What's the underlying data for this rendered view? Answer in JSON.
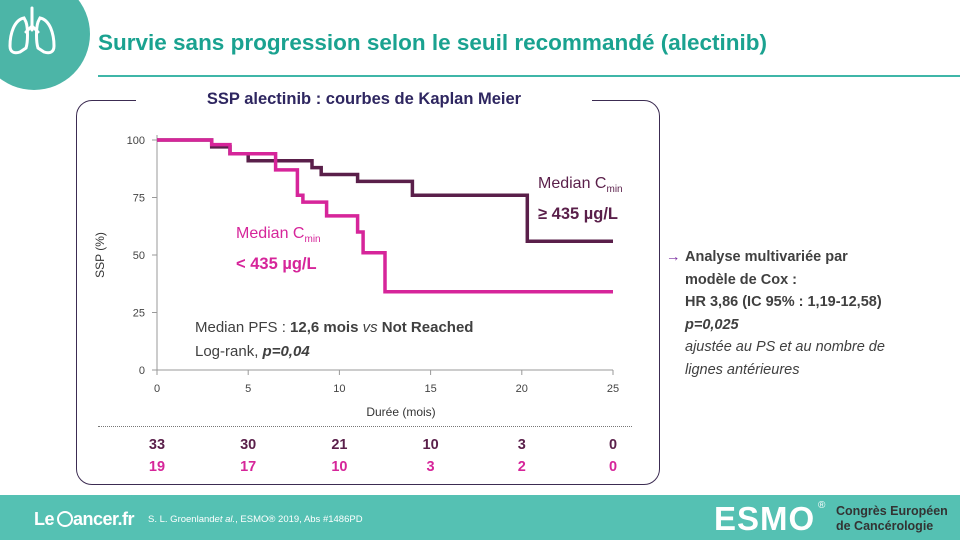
{
  "title": "Survie sans progression selon le seuil recommandé (alectinib)",
  "panel_title": "SSP alectinib : courbes de Kaplan Meier",
  "chart_data": {
    "type": "line",
    "subtype": "kaplan-meier-step",
    "xlabel": "Durée (mois)",
    "ylabel": "SSP (%)",
    "xlim": [
      0,
      25
    ],
    "ylim": [
      0,
      100
    ],
    "xticks": [
      0,
      5,
      10,
      15,
      20,
      25
    ],
    "yticks": [
      0,
      25,
      50,
      75,
      100
    ],
    "grid": false,
    "colors": {
      "high": "#5a1f4a",
      "low": "#d6259a"
    },
    "series": [
      {
        "key": "high",
        "steps": [
          [
            0,
            100
          ],
          [
            3,
            100
          ],
          [
            3,
            97
          ],
          [
            4,
            97
          ],
          [
            4,
            94
          ],
          [
            5,
            94
          ],
          [
            5,
            91
          ],
          [
            8.5,
            91
          ],
          [
            8.5,
            88
          ],
          [
            9,
            88
          ],
          [
            9,
            85
          ],
          [
            11,
            85
          ],
          [
            11,
            82
          ],
          [
            14,
            82
          ],
          [
            14,
            76
          ],
          [
            20.3,
            76
          ],
          [
            20.3,
            56
          ],
          [
            25,
            56
          ]
        ]
      },
      {
        "key": "low",
        "steps": [
          [
            0,
            100
          ],
          [
            3,
            100
          ],
          [
            3,
            98
          ],
          [
            4,
            98
          ],
          [
            4,
            94
          ],
          [
            6.5,
            94
          ],
          [
            6.5,
            87
          ],
          [
            7.7,
            87
          ],
          [
            7.7,
            76
          ],
          [
            8,
            76
          ],
          [
            8,
            73
          ],
          [
            9.3,
            73
          ],
          [
            9.3,
            67
          ],
          [
            11,
            67
          ],
          [
            11,
            60
          ],
          [
            11.3,
            60
          ],
          [
            11.3,
            51
          ],
          [
            12.5,
            51
          ],
          [
            12.5,
            34
          ],
          [
            25,
            34
          ]
        ]
      }
    ],
    "annotations": {
      "high_label_prefix": "Median C",
      "high_label_sub": "min",
      "high_label_value": "≥ 435 µg/L",
      "low_label_prefix": "Median C",
      "low_label_sub": "min",
      "low_label_value": "< 435 µg/L",
      "pfs_prefix": "Median PFS : ",
      "pfs_value": "12,6 mois",
      "pfs_vs": "vs",
      "pfs_other": "Not Reached",
      "logrank_prefix": "Log-rank, ",
      "logrank_value": "p=0,04"
    },
    "at_risk": {
      "times": [
        0,
        5,
        10,
        15,
        20,
        25
      ],
      "high": [
        "33",
        "30",
        "21",
        "10",
        "3",
        "0"
      ],
      "low": [
        "19",
        "17",
        "10",
        "3",
        "2",
        "0"
      ]
    }
  },
  "side": {
    "arrow": "→",
    "line1": "Analyse multivariée par",
    "line2": "modèle de Cox :",
    "line3": "HR 3,86 (IC 95% : 1,19-12,58)",
    "line4": "p=0,025",
    "line5": "ajustée au PS et au nombre de",
    "line6": "lignes antérieures"
  },
  "footer": {
    "brand_left_a": "Le",
    "brand_left_b": "ancer.fr",
    "citation_pre": "S. L. Groenland",
    "citation_etal": "et al.",
    "citation_post": ", ESMO® 2019, Abs #1486PD",
    "esmo": "ESMO",
    "esmo_reg": "®",
    "congres_1": "Congrès Européen",
    "congres_2": "de Cancérologie"
  }
}
